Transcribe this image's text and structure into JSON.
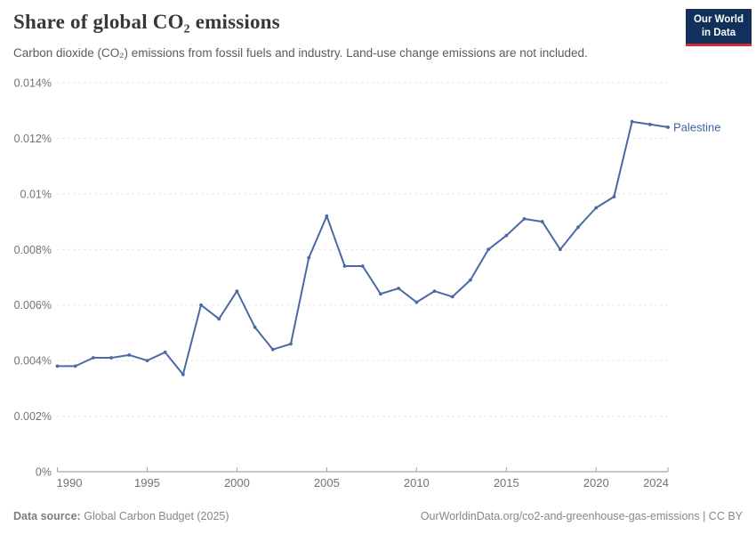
{
  "header": {
    "title": "Share of global CO₂ emissions",
    "subtitle": "Carbon dioxide (CO₂) emissions from fossil fuels and industry. Land-use change emissions are not included.",
    "logo": {
      "line1": "Our World",
      "line2": "in Data"
    }
  },
  "chart_data": {
    "type": "line",
    "title": "Share of global CO₂ emissions",
    "entity_label": "Palestine",
    "unit": "%",
    "x": [
      1990,
      1991,
      1992,
      1993,
      1994,
      1995,
      1996,
      1997,
      1998,
      1999,
      2000,
      2001,
      2002,
      2003,
      2004,
      2005,
      2006,
      2007,
      2008,
      2009,
      2010,
      2011,
      2012,
      2013,
      2014,
      2015,
      2016,
      2017,
      2018,
      2019,
      2020,
      2021,
      2022,
      2023,
      2024
    ],
    "series": [
      {
        "name": "Palestine",
        "values": [
          0.0038,
          0.0038,
          0.0041,
          0.0041,
          0.0042,
          0.004,
          0.0043,
          0.0035,
          0.006,
          0.0055,
          0.0065,
          0.0052,
          0.0044,
          0.0046,
          0.0077,
          0.0092,
          0.0074,
          0.0074,
          0.0064,
          0.0066,
          0.0061,
          0.0065,
          0.0063,
          0.0069,
          0.008,
          0.0085,
          0.0091,
          0.009,
          0.008,
          0.0088,
          0.0095,
          0.0099,
          0.0126,
          0.0125,
          0.0124
        ]
      }
    ],
    "xlabel": "",
    "ylabel": "",
    "xlim": [
      1990,
      2024
    ],
    "ylim": [
      0,
      0.014
    ],
    "yticks": [
      0,
      0.002,
      0.004,
      0.006,
      0.008,
      0.01,
      0.012,
      0.014
    ],
    "ytick_labels": [
      "0%",
      "0.002%",
      "0.004%",
      "0.006%",
      "0.008%",
      "0.01%",
      "0.012%",
      "0.014%"
    ],
    "xticks": [
      1990,
      1995,
      2000,
      2005,
      2010,
      2015,
      2020,
      2024
    ],
    "grid": "horizontal-dashed",
    "legend_position": "end-of-line",
    "colors": {
      "line": "#4a69a5",
      "entity_label": "#3d66a3",
      "gridline": "#dcdcdc",
      "baseline": "#8f8f8f",
      "tick": "#a3a3a3",
      "axis_text": "#737373"
    }
  },
  "footer": {
    "source_label": "Data source:",
    "source_value": "Global Carbon Budget (2025)",
    "link": "OurWorldinData.org/co2-and-greenhouse-gas-emissions | CC BY"
  }
}
